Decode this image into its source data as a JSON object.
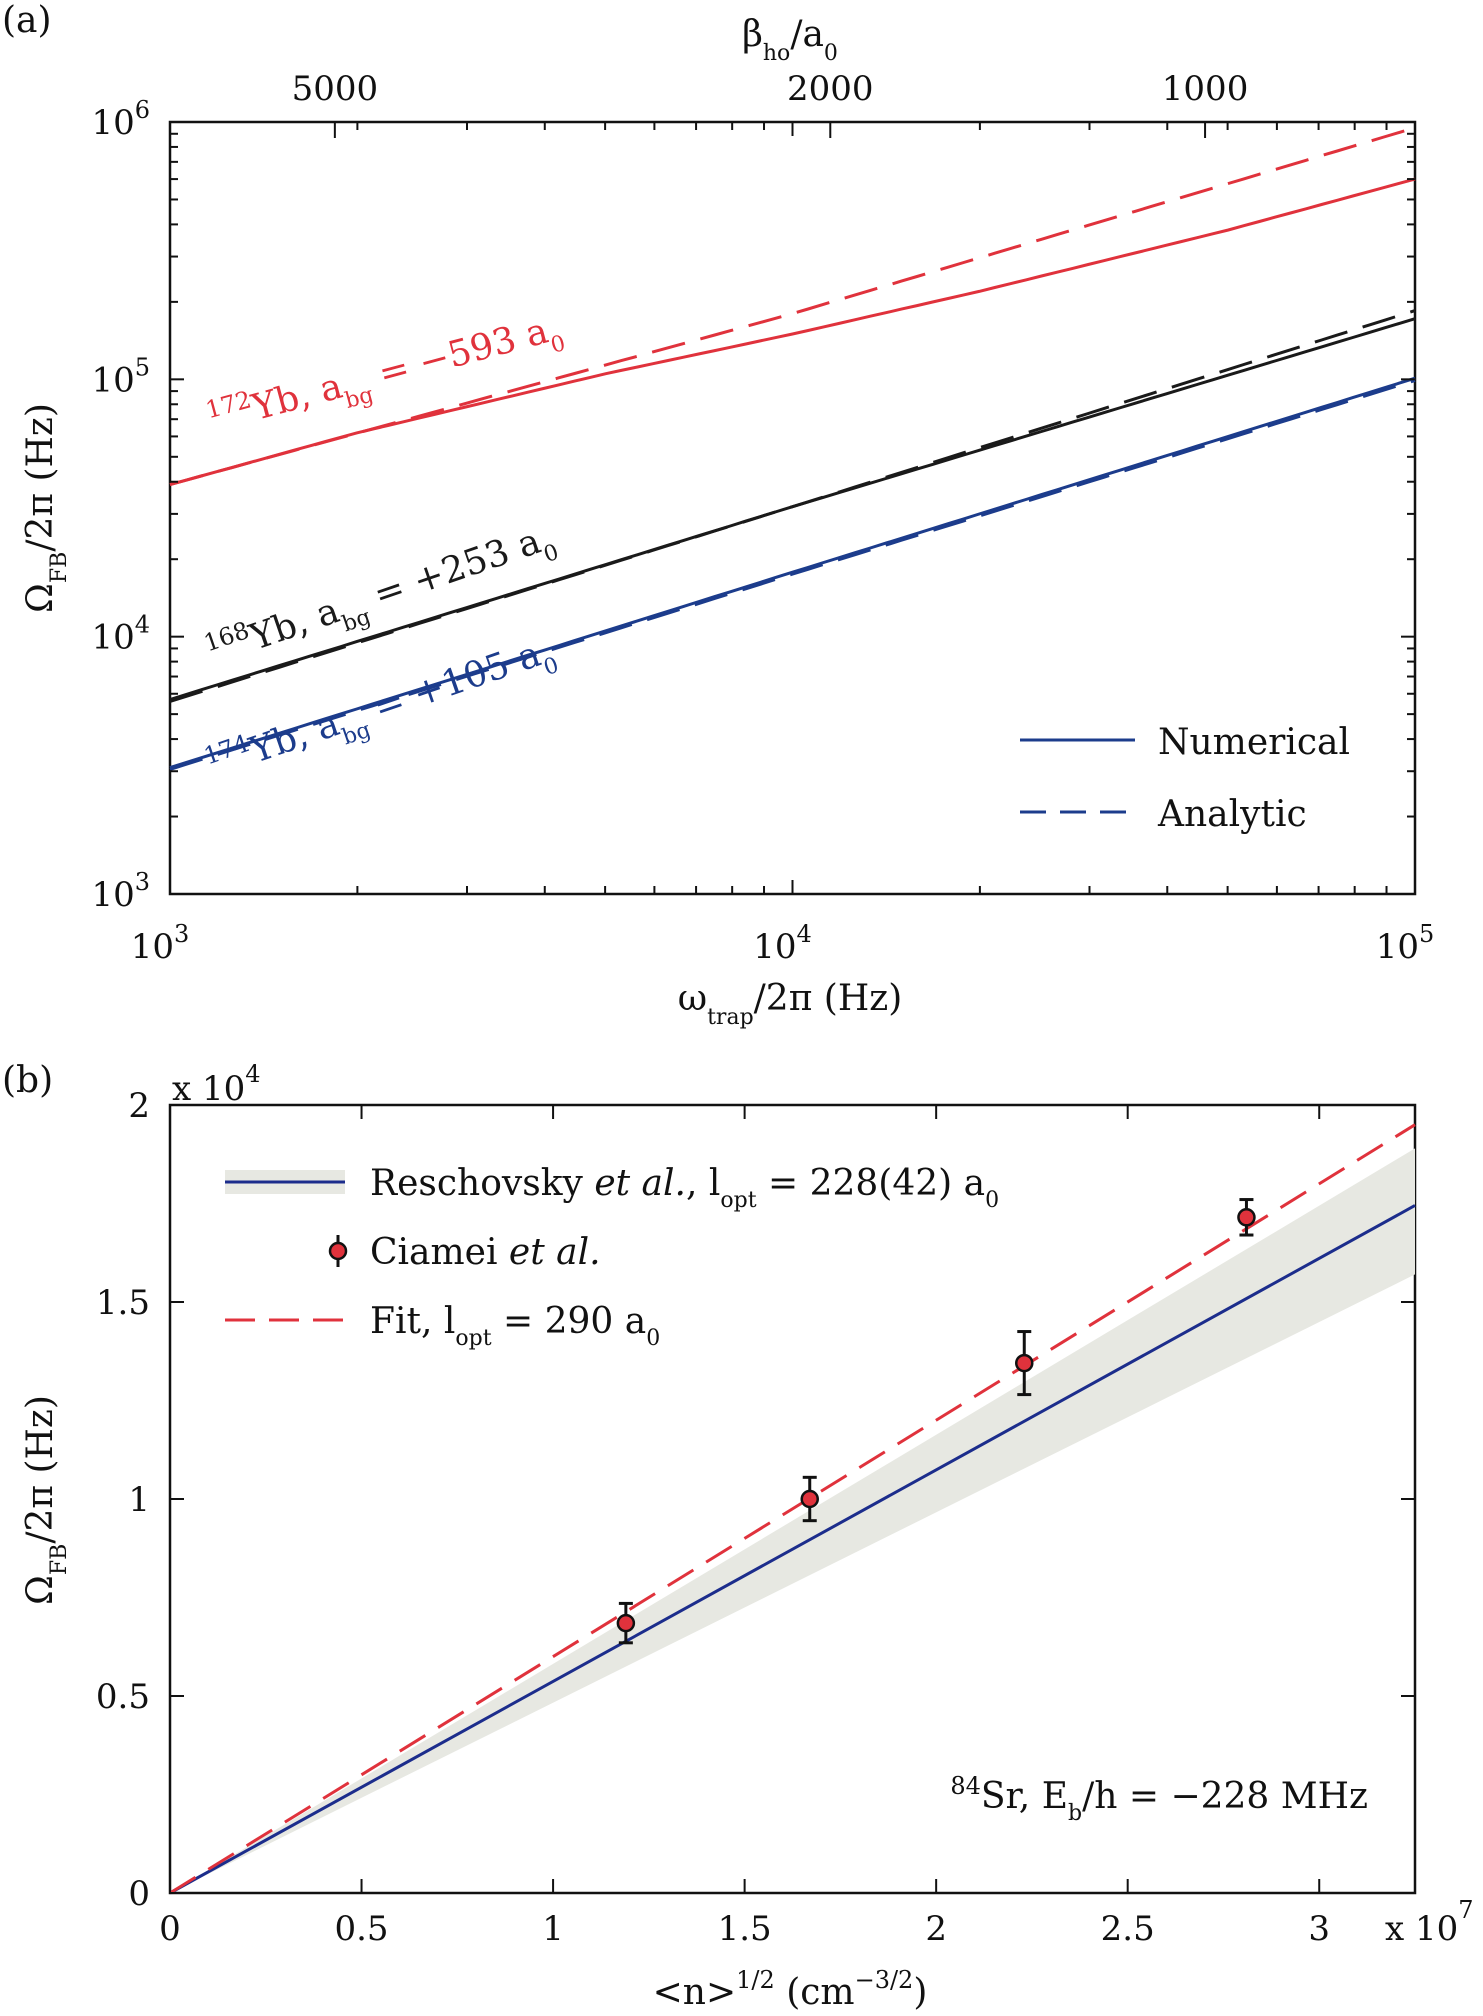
{
  "chart_data": [
    {
      "panel": "(a)",
      "type": "line",
      "xscale": "log",
      "yscale": "log",
      "xlim": [
        1000,
        100000
      ],
      "ylim": [
        1000,
        1000000
      ],
      "xlabel": "ω_trap/2π (Hz)",
      "ylabel": "Ω_FB/2π (Hz)",
      "top_axis_label": "β_ho/a_0",
      "x_ticks": [
        "10^3",
        "10^4",
        "10^5"
      ],
      "y_ticks": [
        "10^3",
        "10^4",
        "10^5",
        "10^6"
      ],
      "top_ticks": [
        {
          "label": "5000",
          "value": 5000
        },
        {
          "label": "2000",
          "value": 2000
        },
        {
          "label": "1000",
          "value": 1000
        }
      ],
      "legend": {
        "position": "bottom-right",
        "entries": [
          {
            "label": "Numerical",
            "style": "solid"
          },
          {
            "label": "Analytic",
            "style": "dashed"
          }
        ]
      },
      "series": [
        {
          "name": "172Yb, abg = −593 a0",
          "isotope": "172",
          "abg": "−593 a",
          "color": "#e0323c",
          "style": "solid",
          "x": [
            1000,
            2000,
            5000,
            10000,
            20000,
            50000,
            100000
          ],
          "y": [
            39000,
            62000,
            105000,
            150000,
            220000,
            380000,
            600000
          ]
        },
        {
          "name": "172Yb, abg = −593 a0",
          "color": "#e0323c",
          "style": "dashed",
          "x": [
            1000,
            10000,
            100000
          ],
          "y": [
            39000,
            180000,
            950000
          ]
        },
        {
          "name": "168Yb, abg = +253 a0",
          "isotope": "168",
          "abg": "+253 a",
          "color": "#1a1a1a",
          "style": "solid",
          "x": [
            1000,
            10000,
            100000
          ],
          "y": [
            5700,
            32000,
            172000
          ]
        },
        {
          "name": "168Yb, abg = +253 a0",
          "color": "#1a1a1a",
          "style": "dashed",
          "x": [
            1000,
            10000,
            100000
          ],
          "y": [
            5600,
            32000,
            185000
          ]
        },
        {
          "name": "174Yb, abg = +105 a0",
          "isotope": "174",
          "abg": "+105 a",
          "color": "#1c3c8c",
          "style": "solid",
          "x": [
            1000,
            10000,
            100000
          ],
          "y": [
            3100,
            17800,
            101000
          ]
        },
        {
          "name": "174Yb, abg = +105 a0",
          "color": "#1c3c8c",
          "style": "dashed",
          "x": [
            1000,
            10000,
            100000
          ],
          "y": [
            3050,
            17500,
            99000
          ]
        }
      ]
    },
    {
      "panel": "(b)",
      "type": "line",
      "xlim": [
        0,
        3.25
      ],
      "ylim": [
        0,
        2
      ],
      "x_multiplier": "x 10^7",
      "y_multiplier": "x 10^4",
      "xlabel": "<n>^1/2 (cm^−3/2)",
      "ylabel": "Ω_FB/2π (Hz)",
      "x_ticks": [
        "0",
        "0.5",
        "1",
        "1.5",
        "2",
        "2.5",
        "3"
      ],
      "y_ticks": [
        "0",
        "0.5",
        "1",
        "1.5",
        "2"
      ],
      "annotation": "84Sr, Eb/h = −228 MHz",
      "legend": {
        "position": "top-left",
        "entries": [
          {
            "label": "Reschovsky et al., lopt = 228(42) a0"
          },
          {
            "label": "Ciamei et al."
          },
          {
            "label": "Fit, lopt = 290 a0"
          }
        ]
      },
      "series": [
        {
          "name": "Reschovsky et al., lopt = 228(42) a0",
          "color": "#1c2d8c",
          "style": "solid",
          "x": [
            0,
            3.25
          ],
          "y": [
            0,
            1.745
          ],
          "band_low": [
            0,
            1.57
          ],
          "band_high": [
            0,
            1.89
          ]
        },
        {
          "name": "Fit, lopt = 290 a0",
          "color": "#e0323c",
          "style": "dashed",
          "x": [
            0,
            3.25
          ],
          "y": [
            0,
            1.95
          ]
        },
        {
          "name": "Ciamei et al.",
          "color": "#e0323c",
          "style": "points",
          "x": [
            1.19,
            1.67,
            2.23,
            2.81
          ],
          "y": [
            0.685,
            1.0,
            1.345,
            1.715
          ],
          "err": [
            0.05,
            0.055,
            0.08,
            0.045
          ]
        }
      ]
    }
  ]
}
